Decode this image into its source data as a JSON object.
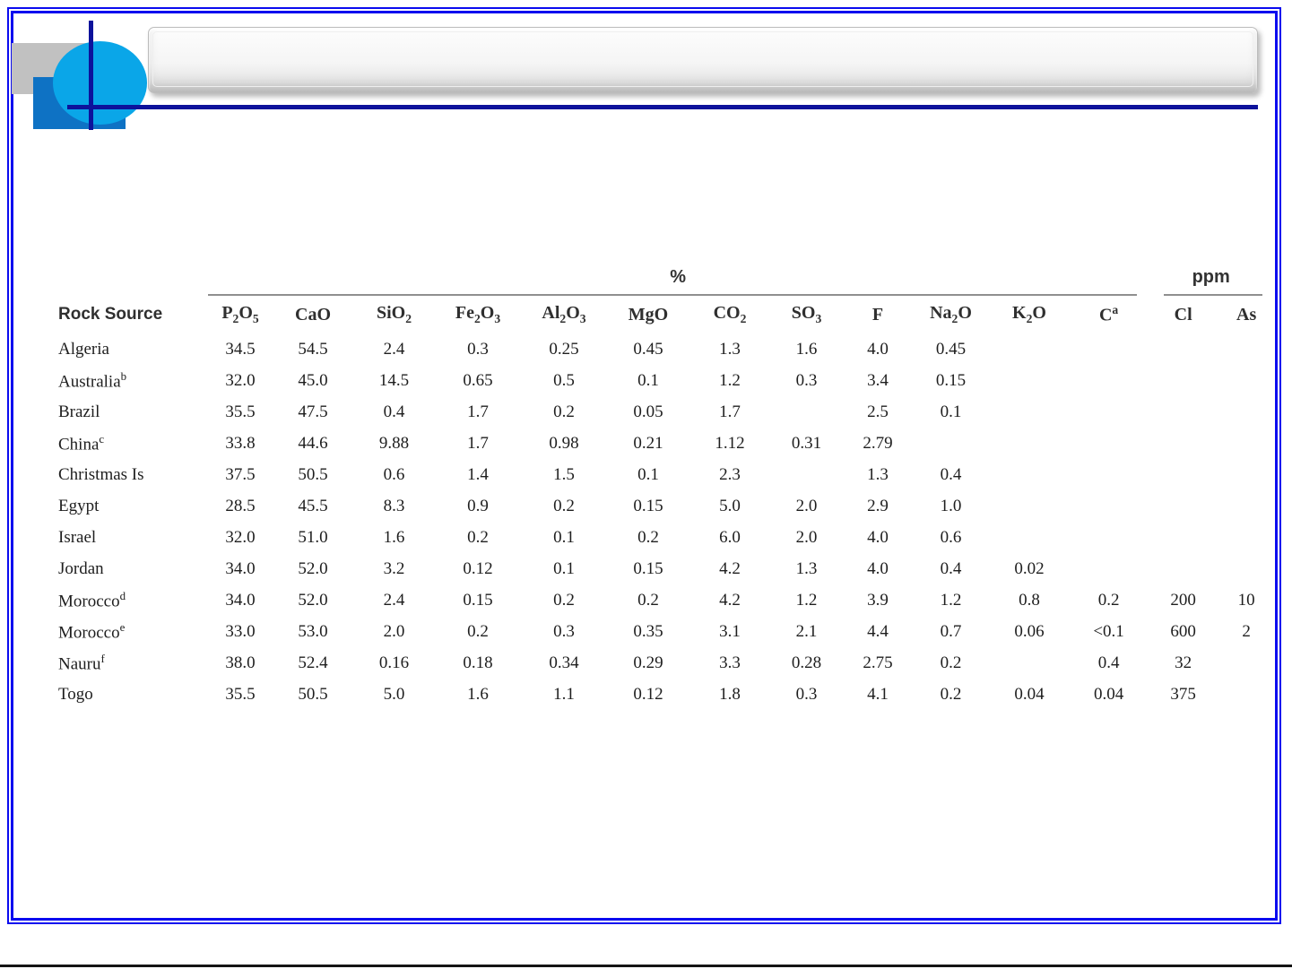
{
  "page": {
    "title_bar_text": "",
    "colors": {
      "page_border_blue": "#0b0bef",
      "crosshair_navy": "#0d129b",
      "logo_gray": "#c1c1c1",
      "logo_blue_square": "#0e72c4",
      "logo_cyan_circle": "#0aa6e8",
      "table_text": "#1e1e1e"
    }
  },
  "table": {
    "row_header": "Rock Source",
    "group_headers": [
      {
        "label": "%",
        "span": 12
      },
      {
        "label": "ppm",
        "span": 2
      }
    ],
    "columns": [
      "P<sub>2</sub>O<sub>5</sub>",
      "CaO",
      "SiO<sub>2</sub>",
      "Fe<sub>2</sub>O<sub>3</sub>",
      "Al<sub>2</sub>O<sub>3</sub>",
      "MgO",
      "CO<sub>2</sub>",
      "SO<sub>3</sub>",
      "F",
      "Na<sub>2</sub>O",
      "K<sub>2</sub>O",
      "C<sup>a</sup>",
      "Cl",
      "As"
    ],
    "rows": [
      {
        "source": "Algeria",
        "values": [
          "34.5",
          "54.5",
          "2.4",
          "0.3",
          "0.25",
          "0.45",
          "1.3",
          "1.6",
          "4.0",
          "0.45",
          "",
          "",
          "",
          ""
        ]
      },
      {
        "source": "Australia<sup>b</sup>",
        "values": [
          "32.0",
          "45.0",
          "14.5",
          "0.65",
          "0.5",
          "0.1",
          "1.2",
          "0.3",
          "3.4",
          "0.15",
          "",
          "",
          "",
          ""
        ]
      },
      {
        "source": "Brazil",
        "values": [
          "35.5",
          "47.5",
          "0.4",
          "1.7",
          "0.2",
          "0.05",
          "1.7",
          "",
          "2.5",
          "0.1",
          "",
          "",
          "",
          ""
        ]
      },
      {
        "source": "China<sup>c</sup>",
        "values": [
          "33.8",
          "44.6",
          "9.88",
          "1.7",
          "0.98",
          "0.21",
          "1.12",
          "0.31",
          "2.79",
          "",
          "",
          "",
          "",
          ""
        ]
      },
      {
        "source": "Christmas Is",
        "values": [
          "37.5",
          "50.5",
          "0.6",
          "1.4",
          "1.5",
          "0.1",
          "2.3",
          "",
          "1.3",
          "0.4",
          "",
          "",
          "",
          ""
        ]
      },
      {
        "source": "Egypt",
        "values": [
          "28.5",
          "45.5",
          "8.3",
          "0.9",
          "0.2",
          "0.15",
          "5.0",
          "2.0",
          "2.9",
          "1.0",
          "",
          "",
          "",
          ""
        ]
      },
      {
        "source": "Israel",
        "values": [
          "32.0",
          "51.0",
          "1.6",
          "0.2",
          "0.1",
          "0.2",
          "6.0",
          "2.0",
          "4.0",
          "0.6",
          "",
          "",
          "",
          ""
        ]
      },
      {
        "source": "Jordan",
        "values": [
          "34.0",
          "52.0",
          "3.2",
          "0.12",
          "0.1",
          "0.15",
          "4.2",
          "1.3",
          "4.0",
          "0.4",
          "0.02",
          "",
          "",
          ""
        ]
      },
      {
        "source": "Morocco<sup>d</sup>",
        "values": [
          "34.0",
          "52.0",
          "2.4",
          "0.15",
          "0.2",
          "0.2",
          "4.2",
          "1.2",
          "3.9",
          "1.2",
          "0.8",
          "0.2",
          "200",
          "10"
        ]
      },
      {
        "source": "Morocco<sup>e</sup>",
        "values": [
          "33.0",
          "53.0",
          "2.0",
          "0.2",
          "0.3",
          "0.35",
          "3.1",
          "2.1",
          "4.4",
          "0.7",
          "0.06",
          "<0.1",
          "600",
          "2"
        ]
      },
      {
        "source": "Nauru<sup>f</sup>",
        "values": [
          "38.0",
          "52.4",
          "0.16",
          "0.18",
          "0.34",
          "0.29",
          "3.3",
          "0.28",
          "2.75",
          "0.2",
          "",
          "0.4",
          "32",
          ""
        ]
      },
      {
        "source": "Togo",
        "values": [
          "35.5",
          "50.5",
          "5.0",
          "1.6",
          "1.1",
          "0.12",
          "1.8",
          "0.3",
          "4.1",
          "0.2",
          "0.04",
          "0.04",
          "375",
          ""
        ]
      }
    ]
  }
}
